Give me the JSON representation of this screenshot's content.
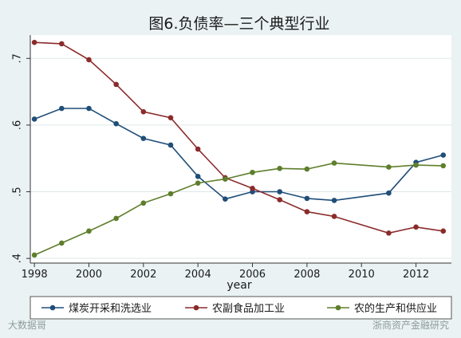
{
  "chart_data": {
    "type": "line",
    "title": "图6.负债率—三个典型行业",
    "xlabel": "year",
    "ylabel": "",
    "xlim": [
      1997.85,
      2013.3
    ],
    "ylim": [
      0.393,
      0.735
    ],
    "x_ticks": [
      1998,
      2000,
      2002,
      2004,
      2006,
      2008,
      2010,
      2012
    ],
    "x_tick_labels": [
      "1998",
      "2000",
      "2002",
      "2004",
      "2006",
      "2008",
      "2010",
      "2012"
    ],
    "y_ticks": [
      0.4,
      0.5,
      0.6,
      0.7
    ],
    "y_tick_labels": [
      ".4",
      ".5",
      ".6",
      ".7"
    ],
    "grid": true,
    "legend_position": "bottom",
    "series": [
      {
        "name": "煤炭开采和洗选业",
        "color": "#1f4e79",
        "x": [
          1998,
          1999,
          2000,
          2001,
          2002,
          2003,
          2004,
          2005,
          2006,
          2007,
          2008,
          2009,
          2011,
          2012,
          2013
        ],
        "y": [
          0.609,
          0.625,
          0.625,
          0.602,
          0.58,
          0.57,
          0.523,
          0.489,
          0.5,
          0.5,
          0.49,
          0.487,
          0.498,
          0.544,
          0.555
        ]
      },
      {
        "name": "农副食品加工业",
        "color": "#8b2b2b",
        "x": [
          1998,
          1999,
          2000,
          2001,
          2002,
          2003,
          2004,
          2005,
          2006,
          2007,
          2008,
          2009,
          2011,
          2012,
          2013
        ],
        "y": [
          0.724,
          0.722,
          0.698,
          0.661,
          0.62,
          0.611,
          0.564,
          0.521,
          0.505,
          0.488,
          0.47,
          0.463,
          0.438,
          0.447,
          0.441
        ]
      },
      {
        "name": "农的生产和供应业",
        "color": "#5e7e2b",
        "x": [
          1998,
          1999,
          2000,
          2001,
          2002,
          2003,
          2004,
          2005,
          2006,
          2007,
          2008,
          2009,
          2011,
          2012,
          2013
        ],
        "y": [
          0.405,
          0.423,
          0.441,
          0.46,
          0.483,
          0.497,
          0.513,
          0.519,
          0.529,
          0.535,
          0.534,
          0.543,
          0.537,
          0.54,
          0.539
        ]
      }
    ]
  },
  "watermarks": {
    "left": "大数据哥",
    "right": "浙商资产金融研究"
  }
}
